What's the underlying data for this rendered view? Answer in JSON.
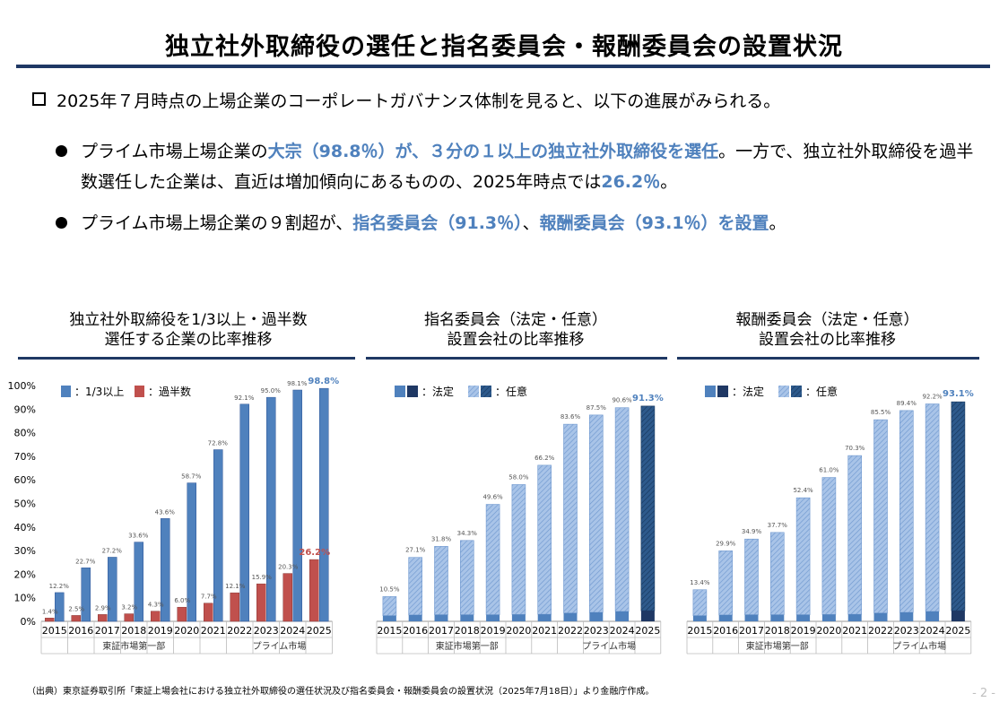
{
  "title": "独立社外取締役の選任と指名委員会・報酬委員会の設置状況",
  "intro": "2025年７月時点の上場企業のコーポレートガバナンス体制を見ると、以下の進展がみられる。",
  "bullet1": {
    "a": "プライム市場上場企業の",
    "b": "大宗（98.8％）が、３分の１以上の独立社外取締役を選任",
    "c": "。一方で、独立社外取締役を過半数選任した企業は、直近は増加傾向にあるものの、2025年時点では",
    "d": "26.2％",
    "e": "。"
  },
  "bullet2": {
    "a": "プライム市場上場企業の９割超が、",
    "b": "指名委員会（91.3％）",
    "c": "、",
    "d": "報酬委員会（93.1％）を設置",
    "e": "。"
  },
  "charts": [
    {
      "title1": "独立社外取締役を1/3以上・過半数",
      "title2": "選任する企業の比率推移"
    },
    {
      "title1": "指名委員会（法定・任意）",
      "title2": "設置会社の比率推移"
    },
    {
      "title1": "報酬委員会（法定・任意）",
      "title2": "設置会社の比率推移"
    }
  ],
  "source": "（出典）東京証券取引所「東証上場会社における独立社外取締役の選任状況及び指名委員会・報酬委員会の設置状況（2025年7月18日）」より金融庁作成。",
  "page_number": "- 2 -",
  "colors": {
    "blue": "#4f81bd",
    "red": "#c0504d",
    "navy": "#1f3864",
    "hatch_light": "#a9c4e8",
    "highlight_blue": "#4f81bd",
    "highlight_red": "#c0504d"
  },
  "chart_data": [
    {
      "type": "bar",
      "categories": [
        "2015",
        "2016",
        "2017",
        "2018",
        "2019",
        "2020",
        "2021",
        "2022",
        "2023",
        "2024",
        "2025"
      ],
      "groups": [
        {
          "label": "東証市場第一部",
          "count": 7
        },
        {
          "label": "プライム市場",
          "count": 4
        }
      ],
      "ylim": [
        0,
        100
      ],
      "yticks": [
        "0%",
        "10%",
        "20%",
        "30%",
        "40%",
        "50%",
        "60%",
        "70%",
        "80%",
        "90%",
        "100%"
      ],
      "legend": [
        {
          "swatch": "blue",
          "label": "：1/3以上"
        },
        {
          "swatch": "red",
          "label": "：過半数"
        }
      ],
      "series": [
        {
          "name": "1/3以上",
          "values": [
            12.2,
            22.7,
            27.2,
            33.6,
            43.6,
            58.7,
            72.8,
            92.1,
            95.0,
            98.1,
            98.8
          ],
          "labels": [
            "12.2%",
            "22.7%",
            "27.2%",
            "33.6%",
            "43.6%",
            "58.7%",
            "72.8%",
            "92.1%",
            "95.0%",
            "98.1%",
            "98.8%"
          ]
        },
        {
          "name": "過半数",
          "values": [
            1.4,
            2.5,
            2.9,
            3.2,
            4.3,
            6.0,
            7.7,
            12.1,
            15.9,
            20.3,
            26.2
          ],
          "labels": [
            "1.4%",
            "2.5%",
            "2.9%",
            "3.2%",
            "4.3%",
            "6.0%",
            "7.7%",
            "12.1%",
            "15.9%",
            "20.3%",
            "26.2%"
          ]
        }
      ]
    },
    {
      "type": "bar",
      "stacked": true,
      "categories": [
        "2015",
        "2016",
        "2017",
        "2018",
        "2019",
        "2020",
        "2021",
        "2022",
        "2023",
        "2024",
        "2025"
      ],
      "groups": [
        {
          "label": "東証市場第一部",
          "count": 7
        },
        {
          "label": "プライム市場",
          "count": 4
        }
      ],
      "ylim": [
        0,
        100
      ],
      "legend": [
        {
          "swatch": "statutory",
          "label": "：法定"
        },
        {
          "swatch": "voluntary",
          "label": "：任意"
        }
      ],
      "totals": [
        10.5,
        27.1,
        31.8,
        34.3,
        49.6,
        58.0,
        66.2,
        83.6,
        87.5,
        90.6,
        91.3
      ],
      "total_labels": [
        "10.5%",
        "27.1%",
        "31.8%",
        "34.3%",
        "49.6%",
        "58.0%",
        "66.2%",
        "83.6%",
        "87.5%",
        "90.6%",
        "91.3%"
      ],
      "statutory": [
        2.4,
        2.7,
        2.8,
        2.8,
        2.8,
        2.9,
        3.0,
        3.5,
        3.8,
        4.2,
        4.5
      ]
    },
    {
      "type": "bar",
      "stacked": true,
      "categories": [
        "2015",
        "2016",
        "2017",
        "2018",
        "2019",
        "2020",
        "2021",
        "2022",
        "2023",
        "2024",
        "2025"
      ],
      "groups": [
        {
          "label": "東証市場第一部",
          "count": 7
        },
        {
          "label": "プライム市場",
          "count": 4
        }
      ],
      "ylim": [
        0,
        100
      ],
      "legend": [
        {
          "swatch": "statutory",
          "label": "：法定"
        },
        {
          "swatch": "voluntary",
          "label": "：任意"
        }
      ],
      "totals": [
        13.4,
        29.9,
        34.9,
        37.7,
        52.4,
        61.0,
        70.3,
        85.5,
        89.4,
        92.2,
        93.1
      ],
      "total_labels": [
        "13.4%",
        "29.9%",
        "34.9%",
        "37.7%",
        "52.4%",
        "61.0%",
        "70.3%",
        "85.5%",
        "89.4%",
        "92.2%",
        "93.1%"
      ],
      "statutory": [
        2.4,
        2.7,
        2.8,
        2.8,
        2.8,
        2.9,
        3.0,
        3.5,
        3.8,
        4.2,
        4.5
      ]
    }
  ]
}
